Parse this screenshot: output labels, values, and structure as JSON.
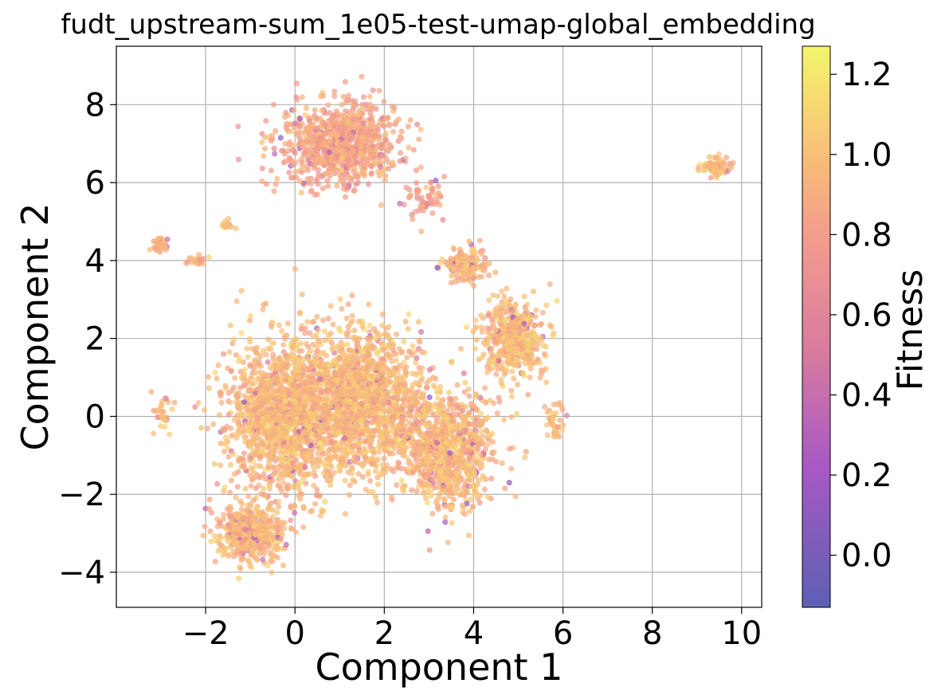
{
  "chart_data": {
    "type": "scatter",
    "title": "fudt_upstream-sum_1e05-test-umap-global_embedding",
    "xlabel": "Component 1",
    "ylabel": "Component 2",
    "xlim": [
      -4.0,
      10.45
    ],
    "ylim": [
      -4.9,
      9.5
    ],
    "xticks": [
      -2,
      0,
      2,
      4,
      6,
      8,
      10
    ],
    "yticks": [
      -4,
      -2,
      0,
      2,
      4,
      6,
      8
    ],
    "grid": true,
    "colormap": "plasma",
    "colorbar": {
      "label": "Fitness",
      "range": [
        -0.13,
        1.27
      ],
      "ticks": [
        0.0,
        0.2,
        0.4,
        0.6,
        0.8,
        1.0,
        1.2
      ]
    },
    "clusters": [
      {
        "center": [
          -0.3,
          0.0
        ],
        "spread": [
          1.0,
          1.6
        ],
        "n": 1400,
        "fitness_mean": 0.95
      },
      {
        "center": [
          1.4,
          0.4
        ],
        "spread": [
          1.1,
          1.5
        ],
        "n": 1500,
        "fitness_mean": 0.96
      },
      {
        "center": [
          3.4,
          -0.8
        ],
        "spread": [
          0.9,
          1.2
        ],
        "n": 900,
        "fitness_mean": 0.95
      },
      {
        "center": [
          4.9,
          2.0
        ],
        "spread": [
          0.55,
          0.8
        ],
        "n": 500,
        "fitness_mean": 0.97
      },
      {
        "center": [
          3.8,
          3.9
        ],
        "spread": [
          0.4,
          0.35
        ],
        "n": 150,
        "fitness_mean": 0.93
      },
      {
        "center": [
          -1.0,
          -3.0
        ],
        "spread": [
          0.6,
          0.6
        ],
        "n": 450,
        "fitness_mean": 0.94
      },
      {
        "center": [
          1.0,
          7.0
        ],
        "spread": [
          1.0,
          0.85
        ],
        "n": 900,
        "fitness_mean": 0.85
      },
      {
        "center": [
          2.9,
          5.6
        ],
        "spread": [
          0.35,
          0.4
        ],
        "n": 60,
        "fitness_mean": 0.8
      },
      {
        "center": [
          -3.0,
          4.4
        ],
        "spread": [
          0.15,
          0.15
        ],
        "n": 40,
        "fitness_mean": 0.95
      },
      {
        "center": [
          -2.2,
          4.0
        ],
        "spread": [
          0.15,
          0.1
        ],
        "n": 25,
        "fitness_mean": 0.95
      },
      {
        "center": [
          -1.5,
          4.9
        ],
        "spread": [
          0.15,
          0.1
        ],
        "n": 15,
        "fitness_mean": 0.95
      },
      {
        "center": [
          9.4,
          6.4
        ],
        "spread": [
          0.25,
          0.22
        ],
        "n": 80,
        "fitness_mean": 0.98
      },
      {
        "center": [
          -3.0,
          0.0
        ],
        "spread": [
          0.2,
          0.4
        ],
        "n": 30,
        "fitness_mean": 0.95
      },
      {
        "center": [
          5.8,
          -0.2
        ],
        "spread": [
          0.15,
          0.4
        ],
        "n": 40,
        "fitness_mean": 0.95
      }
    ]
  }
}
